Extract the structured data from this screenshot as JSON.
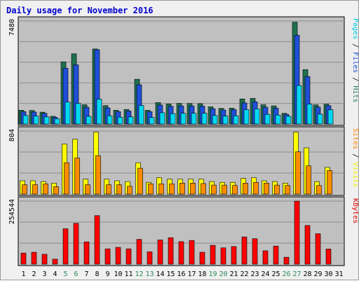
{
  "chart_data": {
    "type": "bar",
    "title": "Daily usage for November 2016",
    "title_color": "#0000cc",
    "categories": [
      "1",
      "2",
      "3",
      "4",
      "5",
      "6",
      "7",
      "8",
      "9",
      "10",
      "11",
      "12",
      "13",
      "14",
      "15",
      "16",
      "17",
      "18",
      "19",
      "20",
      "21",
      "22",
      "23",
      "24",
      "25",
      "26",
      "27",
      "28",
      "29",
      "30",
      "31"
    ],
    "weekend_days": [
      "5",
      "6",
      "12",
      "13",
      "19",
      "20",
      "26",
      "27"
    ],
    "weekend_color": "#2c8c5a",
    "panels": [
      {
        "id": "hits",
        "ymax_label": "7480",
        "ymax": 7480,
        "legend": [
          {
            "text": "Pages",
            "color": "#00c8e0"
          },
          {
            "text": " / ",
            "color": "#000000"
          },
          {
            "text": "Files",
            "color": "#1f4fd8"
          },
          {
            "text": " / ",
            "color": "#000000"
          },
          {
            "text": "Hits",
            "color": "#1f7a5a"
          }
        ],
        "series": [
          {
            "name": "Hits",
            "color": "#1e7050",
            "values": [
              1000,
              980,
              860,
              560,
              4520,
              5100,
              1400,
              5450,
              1340,
              1000,
              1060,
              3250,
              1000,
              1560,
              1460,
              1500,
              1490,
              1480,
              1250,
              1140,
              1150,
              1820,
              1860,
              1400,
              1320,
              780,
              7400,
              3950,
              1390,
              1440,
              0
            ]
          },
          {
            "name": "Files",
            "color": "#1f4fd8",
            "values": [
              900,
              870,
              780,
              490,
              4050,
              4300,
              1220,
              5400,
              1170,
              900,
              940,
              2850,
              900,
              1380,
              1290,
              1320,
              1320,
              1300,
              1110,
              1020,
              1050,
              1530,
              1620,
              1220,
              1150,
              700,
              6450,
              3450,
              1230,
              1330,
              0
            ]
          },
          {
            "name": "Pages",
            "color": "#00d8f0",
            "values": [
              620,
              580,
              520,
              380,
              1600,
              1500,
              560,
              1800,
              600,
              500,
              520,
              1350,
              480,
              820,
              760,
              780,
              780,
              780,
              620,
              580,
              600,
              1050,
              1100,
              700,
              650,
              560,
              2800,
              1450,
              720,
              1040,
              0
            ]
          }
        ]
      },
      {
        "id": "visits",
        "ymax_label": "804",
        "ymax": 804,
        "legend": [
          {
            "text": "Sites",
            "color": "#ff8000"
          },
          {
            "text": " / ",
            "color": "#000000"
          },
          {
            "text": "Visits",
            "color": "#f0f000"
          }
        ],
        "series": [
          {
            "name": "Visits",
            "color": "#ffff00",
            "values": [
              170,
              170,
              160,
              140,
              640,
              700,
              190,
              790,
              190,
              170,
              160,
              400,
              150,
              210,
              190,
              190,
              190,
              190,
              160,
              150,
              150,
              200,
              210,
              170,
              160,
              140,
              790,
              590,
              160,
              340,
              0
            ]
          },
          {
            "name": "Sites",
            "color": "#ff8c00",
            "values": [
              120,
              120,
              130,
              95,
              400,
              460,
              120,
              490,
              120,
              120,
              100,
              330,
              130,
              130,
              130,
              140,
              140,
              135,
              115,
              115,
              110,
              140,
              150,
              140,
              115,
              110,
              540,
              360,
              110,
              300,
              0
            ]
          }
        ]
      },
      {
        "id": "kbytes",
        "ymax_label": "254544",
        "ymax": 254544,
        "legend": [
          {
            "text": "KBytes",
            "color": "#e00000"
          }
        ],
        "series": [
          {
            "name": "KBytes",
            "color": "#ff0000",
            "values": [
              45000,
              48000,
              40000,
              20000,
              143000,
              165000,
              90000,
              196000,
              62000,
              68000,
              62000,
              100000,
              50000,
              98000,
              107000,
              91000,
              96000,
              48000,
              76000,
              66000,
              71000,
              110000,
              103000,
              54000,
              73000,
              28000,
              254544,
              156000,
              123000,
              61000,
              0
            ]
          }
        ]
      }
    ]
  }
}
